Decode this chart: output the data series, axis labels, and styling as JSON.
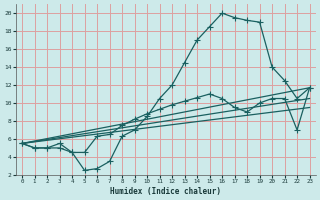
{
  "xlabel": "Humidex (Indice chaleur)",
  "xlim": [
    -0.5,
    23.5
  ],
  "ylim": [
    2,
    21
  ],
  "xticks": [
    0,
    1,
    2,
    3,
    4,
    5,
    6,
    7,
    8,
    9,
    10,
    11,
    12,
    13,
    14,
    15,
    16,
    17,
    18,
    19,
    20,
    21,
    22,
    23
  ],
  "yticks": [
    2,
    4,
    6,
    8,
    10,
    12,
    14,
    16,
    18,
    20
  ],
  "bg_color": "#cdeaea",
  "grid_color": "#dda0a0",
  "line_color": "#1a6060",
  "line1_x": [
    0,
    1,
    2,
    3,
    4,
    5,
    6,
    7,
    8,
    9,
    10,
    11,
    12,
    13,
    14,
    15,
    16,
    17,
    18,
    19,
    20,
    21,
    22,
    23
  ],
  "line1_y": [
    5.5,
    5.0,
    5.0,
    5.5,
    4.5,
    2.5,
    2.7,
    3.5,
    6.3,
    7.0,
    8.5,
    10.5,
    12.0,
    14.5,
    17.0,
    18.5,
    20.0,
    19.5,
    19.2,
    19.0,
    14.0,
    12.5,
    10.5,
    11.7
  ],
  "line2_x": [
    0,
    1,
    2,
    3,
    4,
    5,
    6,
    7,
    8,
    9,
    10,
    11,
    12,
    13,
    14,
    15,
    16,
    17,
    18,
    19,
    20,
    21,
    22,
    23
  ],
  "line2_y": [
    5.5,
    5.0,
    5.0,
    5.0,
    4.5,
    4.5,
    6.3,
    6.5,
    7.5,
    8.2,
    8.8,
    9.3,
    9.8,
    10.2,
    10.6,
    11.0,
    10.5,
    9.5,
    9.0,
    10.0,
    10.5,
    10.5,
    7.0,
    11.7
  ],
  "line3_x": [
    0,
    23
  ],
  "line3_y": [
    5.5,
    10.5
  ],
  "line4_x": [
    0,
    23
  ],
  "line4_y": [
    5.5,
    11.7
  ],
  "line5_x": [
    0,
    23
  ],
  "line5_y": [
    5.5,
    9.5
  ]
}
